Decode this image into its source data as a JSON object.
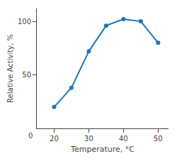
{
  "chart_data": {
    "type": "line",
    "xlabel": "Temperature, °C",
    "ylabel": "Relative Activity, %",
    "x": [
      20,
      25,
      30,
      35,
      40,
      45,
      50
    ],
    "values": [
      20,
      38,
      72,
      96,
      102,
      100,
      80
    ],
    "xlim": [
      15,
      53
    ],
    "ylim": [
      0,
      112
    ],
    "xticks": [
      20,
      30,
      40,
      50
    ],
    "yticks": [
      50,
      100
    ],
    "grid": false,
    "marker": "circle",
    "annotations": [
      "0"
    ]
  }
}
